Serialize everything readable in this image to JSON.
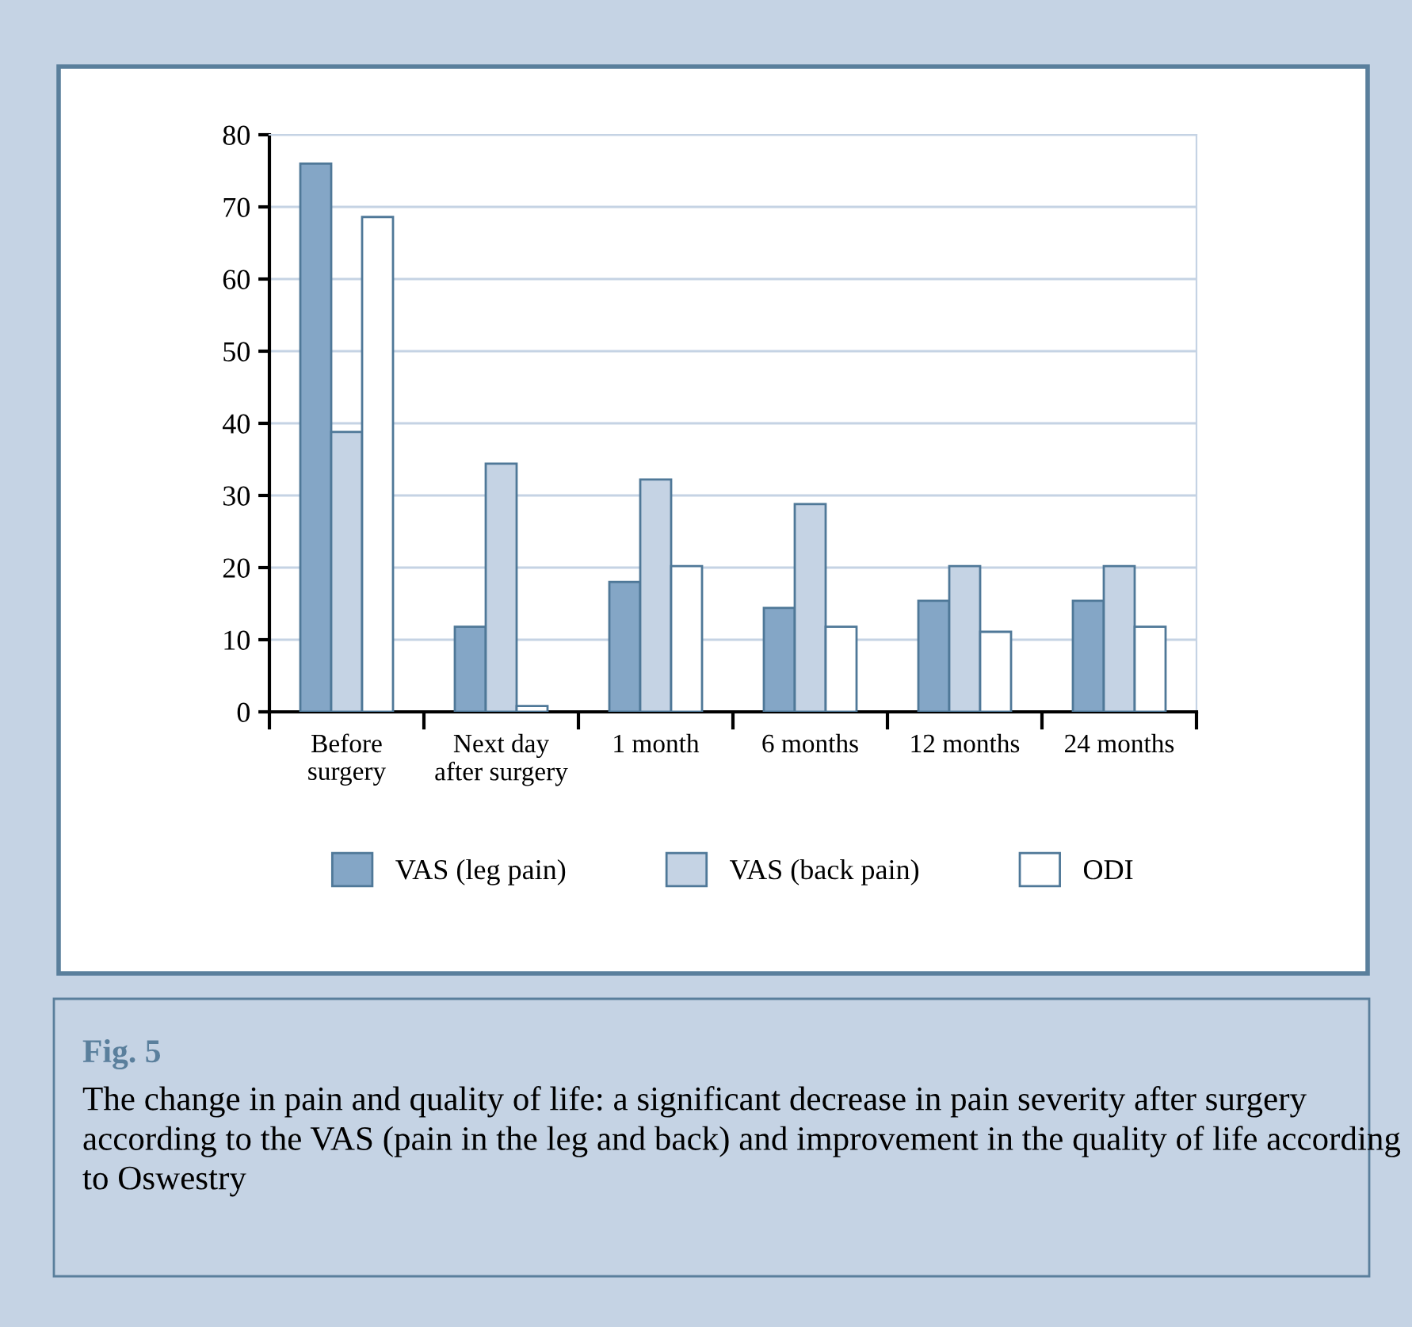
{
  "chart_data": {
    "type": "bar",
    "title": "Fig. 5",
    "subtitle": "The change in pain and quality of life: a significant decrease in pain severity after surgery according to the VAS (pain in the leg and back) and improvement in the quality of life according to Oswestry",
    "categories": [
      "Before\nsurgery",
      "Next day\nafter surgery",
      "1 month",
      "6 months",
      "12 months",
      "24 months"
    ],
    "series": [
      {
        "name": "VAS (leg pain)",
        "color": "#84a6c6",
        "values": [
          76,
          11.8,
          18,
          14.4,
          15.4,
          15.4
        ]
      },
      {
        "name": "VAS (back pain)",
        "color": "#c5d3e4",
        "values": [
          38.8,
          34.4,
          32.2,
          28.8,
          20.2,
          20.2
        ]
      },
      {
        "name": "ODI",
        "color": "#ffffff",
        "values": [
          68.6,
          0.8,
          20.2,
          11.8,
          11.1,
          11.8
        ]
      }
    ],
    "ylim": [
      0,
      80
    ],
    "yticks": [
      0,
      10,
      20,
      30,
      40,
      50,
      60,
      70,
      80
    ],
    "grid": "y",
    "legend": "bottom"
  }
}
